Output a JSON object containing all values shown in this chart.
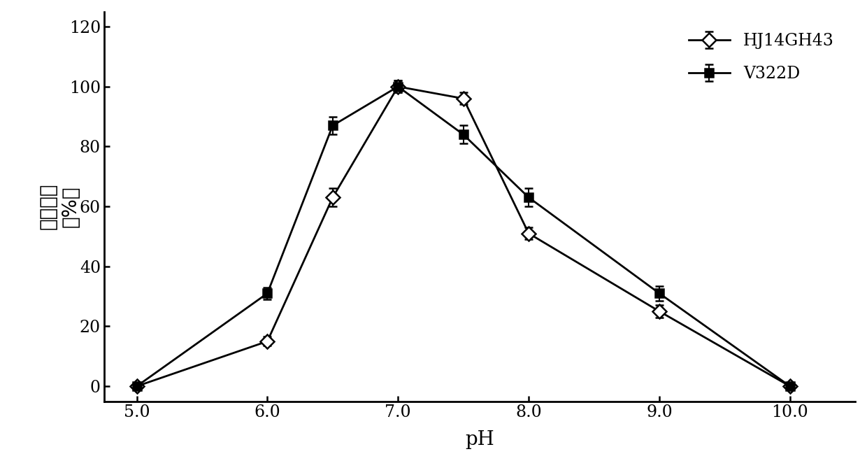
{
  "hj14gh43_x": [
    5.0,
    6.0,
    6.5,
    7.0,
    7.5,
    8.0,
    9.0,
    10.0
  ],
  "hj14gh43_y": [
    0,
    15,
    63,
    100,
    96,
    51,
    25,
    0
  ],
  "hj14gh43_yerr": [
    0,
    1.5,
    3,
    2,
    2,
    2,
    2,
    0
  ],
  "v322d_x": [
    5.0,
    6.0,
    6.5,
    7.0,
    7.5,
    8.0,
    9.0,
    10.0
  ],
  "v322d_y": [
    0,
    31,
    87,
    100,
    84,
    63,
    31,
    0
  ],
  "v322d_yerr": [
    0,
    2,
    3,
    2,
    3,
    3,
    2.5,
    0
  ],
  "xlabel": "pH",
  "ylabel_chinese": "相对酶活",
  "ylabel_paren": "（%）",
  "ylim": [
    -5,
    125
  ],
  "xlim": [
    4.75,
    10.5
  ],
  "yticks": [
    0,
    20,
    40,
    60,
    80,
    100,
    120
  ],
  "xticks": [
    5.0,
    6.0,
    7.0,
    8.0,
    9.0,
    10.0
  ],
  "xtick_labels": [
    "5.0",
    "6.0",
    "7.0",
    "8.0",
    "9.0",
    "10.0"
  ],
  "legend_labels": [
    "HJ14GH43",
    "V322D"
  ],
  "line_color": "#000000",
  "background_color": "#ffffff",
  "fontsize_axis_label": 20,
  "fontsize_tick": 17,
  "fontsize_legend": 17
}
